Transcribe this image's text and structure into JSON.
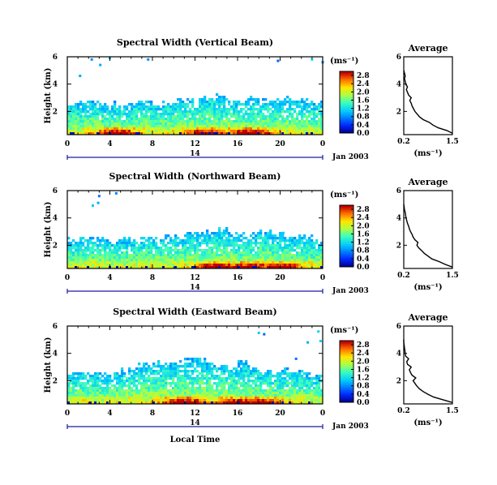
{
  "chart_data": {
    "type": "heatmap",
    "panels": [
      {
        "title": "Spectral Width (Vertical Beam)",
        "average_title": "Average",
        "xlabel": "",
        "ylabel": "Height (km)",
        "xticks": [
          "0",
          "4",
          "8",
          "12",
          "16",
          "20",
          "0"
        ],
        "xlim": [
          0,
          24
        ],
        "yticks": [
          "2",
          "4",
          "6"
        ],
        "ylim": [
          0.3,
          6
        ],
        "date_day": "14",
        "date_label": "Jan 2003",
        "colorbar": {
          "unit": "(ms⁻¹)",
          "ticks": [
            "0.0",
            "0.4",
            "0.8",
            "1.2",
            "1.6",
            "2.0",
            "2.4",
            "2.8"
          ],
          "range": [
            0,
            3.0
          ]
        },
        "cloud_top_km": [
          2.6,
          2.6,
          2.7,
          2.5,
          2.5,
          2.6,
          2.8,
          2.7,
          2.6,
          2.7,
          2.8,
          2.9,
          3.0,
          3.1,
          2.9,
          2.8,
          2.9,
          2.9,
          2.8,
          2.8,
          3.0,
          2.8,
          2.7,
          2.6
        ],
        "hot_hours": [
          4.5,
          13,
          17
        ],
        "sparse_points": [
          [
            2.3,
            5.8
          ],
          [
            3.1,
            5.4
          ],
          [
            4.0,
            5.9
          ],
          [
            1.2,
            4.6
          ],
          [
            7.6,
            5.8
          ],
          [
            19.8,
            5.7
          ],
          [
            23.0,
            5.8
          ],
          [
            24.0,
            5.6
          ]
        ],
        "average_profile": {
          "xlabel": "(ms⁻¹)",
          "xticks": [
            "0.2",
            "1.5"
          ],
          "xlim": [
            0.2,
            1.5
          ],
          "yticks": [
            "2",
            "4",
            "6"
          ],
          "ylim": [
            0.3,
            6
          ],
          "height_km": [
            0.4,
            0.6,
            0.8,
            1.0,
            1.2,
            1.4,
            1.6,
            1.8,
            2.0,
            2.2,
            2.4,
            2.6,
            2.8,
            3.0,
            3.2,
            3.4,
            3.6,
            3.8,
            4.0,
            4.2,
            4.4,
            4.6,
            4.8,
            5.0
          ],
          "width": [
            1.5,
            1.35,
            1.12,
            0.98,
            0.88,
            0.72,
            0.62,
            0.56,
            0.5,
            0.46,
            0.42,
            0.4,
            0.36,
            0.4,
            0.33,
            0.3,
            0.27,
            0.3,
            0.25,
            0.24,
            0.22,
            0.24,
            0.22,
            0.2
          ]
        }
      },
      {
        "title": "Spectral Width (Northward Beam)",
        "average_title": "Average",
        "xlabel": "",
        "ylabel": "Height (km)",
        "xticks": [
          "0",
          "4",
          "8",
          "12",
          "16",
          "20",
          "0"
        ],
        "xlim": [
          0,
          24
        ],
        "yticks": [
          "2",
          "4",
          "6"
        ],
        "ylim": [
          0.3,
          6
        ],
        "date_day": "14",
        "date_label": "Jan 2003",
        "colorbar": {
          "unit": "(ms⁻¹)",
          "ticks": [
            "0.0",
            "0.4",
            "0.8",
            "1.2",
            "1.6",
            "2.0",
            "2.4",
            "2.8"
          ],
          "range": [
            0,
            3.0
          ]
        },
        "cloud_top_km": [
          2.4,
          2.5,
          2.5,
          2.4,
          2.3,
          2.4,
          2.5,
          2.5,
          2.5,
          2.6,
          2.7,
          2.8,
          2.9,
          3.0,
          3.2,
          2.9,
          2.8,
          2.9,
          3.0,
          2.8,
          2.7,
          2.6,
          2.5,
          2.4
        ],
        "hot_hours": [
          14,
          17,
          20
        ],
        "sparse_points": [
          [
            3.0,
            5.6
          ],
          [
            2.9,
            5.1
          ],
          [
            2.4,
            4.9
          ],
          [
            4.6,
            5.8
          ],
          [
            20.3,
            2.9
          ]
        ],
        "average_profile": {
          "xlabel": "(ms⁻¹)",
          "xticks": [
            "0.2",
            "1.5"
          ],
          "xlim": [
            0.2,
            1.5
          ],
          "yticks": [
            "2",
            "4",
            "6"
          ],
          "ylim": [
            0.3,
            6
          ],
          "height_km": [
            0.4,
            0.6,
            0.8,
            1.0,
            1.2,
            1.4,
            1.6,
            1.8,
            2.0,
            2.2,
            2.4,
            2.6,
            2.8,
            3.0,
            3.2,
            3.4,
            3.6,
            3.8,
            4.0,
            4.2,
            4.4,
            4.6,
            4.8,
            5.0
          ],
          "width": [
            1.5,
            1.3,
            1.15,
            0.95,
            0.85,
            0.75,
            0.68,
            0.6,
            0.55,
            0.58,
            0.5,
            0.45,
            0.42,
            0.38,
            0.35,
            0.33,
            0.3,
            0.28,
            0.26,
            0.25,
            0.24,
            0.22,
            0.21,
            0.2
          ]
        }
      },
      {
        "title": "Spectral Width (Eastward Beam)",
        "average_title": "Average",
        "xlabel": "Local Time",
        "ylabel": "Height (km)",
        "xticks": [
          "0",
          "4",
          "8",
          "12",
          "16",
          "20",
          "0"
        ],
        "xlim": [
          0,
          24
        ],
        "yticks": [
          "2",
          "4",
          "6"
        ],
        "ylim": [
          0.3,
          6
        ],
        "date_day": "14",
        "date_label": "Jan 2003",
        "colorbar": {
          "unit": "(ms⁻¹)",
          "ticks": [
            "0.0",
            "0.4",
            "0.8",
            "1.2",
            "1.6",
            "2.0",
            "2.4",
            "2.8"
          ],
          "range": [
            0,
            3.0
          ]
        },
        "cloud_top_km": [
          2.6,
          2.6,
          2.5,
          2.4,
          2.6,
          2.8,
          3.0,
          3.2,
          3.3,
          3.2,
          3.4,
          3.5,
          3.6,
          3.3,
          3.2,
          3.1,
          3.3,
          2.9,
          2.7,
          2.6,
          2.8,
          2.7,
          2.5,
          2.4
        ],
        "hot_hours": [
          11,
          16,
          18
        ],
        "sparse_points": [
          [
            18.0,
            5.5
          ],
          [
            18.5,
            5.4
          ],
          [
            22.6,
            4.8
          ],
          [
            21.5,
            3.6
          ],
          [
            23.6,
            5.6
          ],
          [
            23.8,
            4.9
          ]
        ],
        "average_profile": {
          "xlabel": "(ms⁻¹)",
          "xticks": [
            "0.2",
            "1.5"
          ],
          "xlim": [
            0.2,
            1.5
          ],
          "yticks": [
            "2",
            "4",
            "6"
          ],
          "ylim": [
            0.3,
            6
          ],
          "height_km": [
            0.4,
            0.6,
            0.8,
            1.0,
            1.2,
            1.4,
            1.6,
            1.8,
            2.0,
            2.2,
            2.4,
            2.6,
            2.8,
            3.0,
            3.2,
            3.4,
            3.6,
            3.8,
            4.0,
            4.2,
            4.4,
            4.6,
            4.8,
            5.0
          ],
          "width": [
            1.5,
            1.25,
            1.0,
            0.85,
            0.72,
            0.62,
            0.55,
            0.5,
            0.45,
            0.52,
            0.42,
            0.38,
            0.35,
            0.4,
            0.3,
            0.28,
            0.33,
            0.25,
            0.24,
            0.23,
            0.22,
            0.21,
            0.2,
            0.2
          ]
        }
      }
    ]
  }
}
